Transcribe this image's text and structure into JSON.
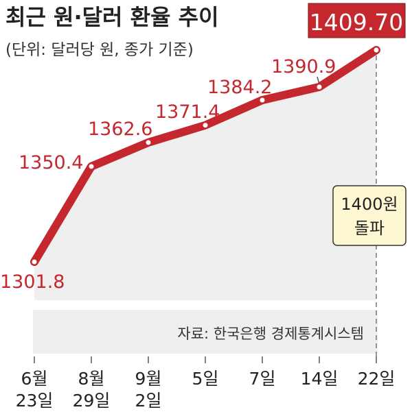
{
  "chart_data": {
    "type": "area",
    "title": "최근 원·달러 환율 추이",
    "subtitle": "(단위: 달러당 원, 종가 기준)",
    "xlabel": "",
    "ylabel": "",
    "x": [
      {
        "line1": "6월",
        "line2": "23일"
      },
      {
        "line1": "8월",
        "line2": "29일"
      },
      {
        "line1": "9월",
        "line2": "2일"
      },
      {
        "line1": "5일",
        "line2": ""
      },
      {
        "line1": "7일",
        "line2": ""
      },
      {
        "line1": "14일",
        "line2": ""
      },
      {
        "line1": "22일",
        "line2": ""
      }
    ],
    "values": [
      1301.8,
      1350.4,
      1362.6,
      1371.4,
      1384.2,
      1390.9,
      1409.7
    ],
    "value_labels": [
      "1301.8",
      "1350.4",
      "1362.6",
      "1371.4",
      "1384.2",
      "1390.9",
      "1409.70"
    ],
    "highlight_index": 6,
    "annotation": {
      "line1": "1400원",
      "line2": "돌파"
    },
    "source": "자료: 한국은행 경제통계시스템",
    "colors": {
      "line": "#c4272d",
      "area": "#efefef",
      "highlight_bg": "#c4272d",
      "annotation_bg": "#fdf7d2",
      "annotation_border": "#333333"
    }
  }
}
